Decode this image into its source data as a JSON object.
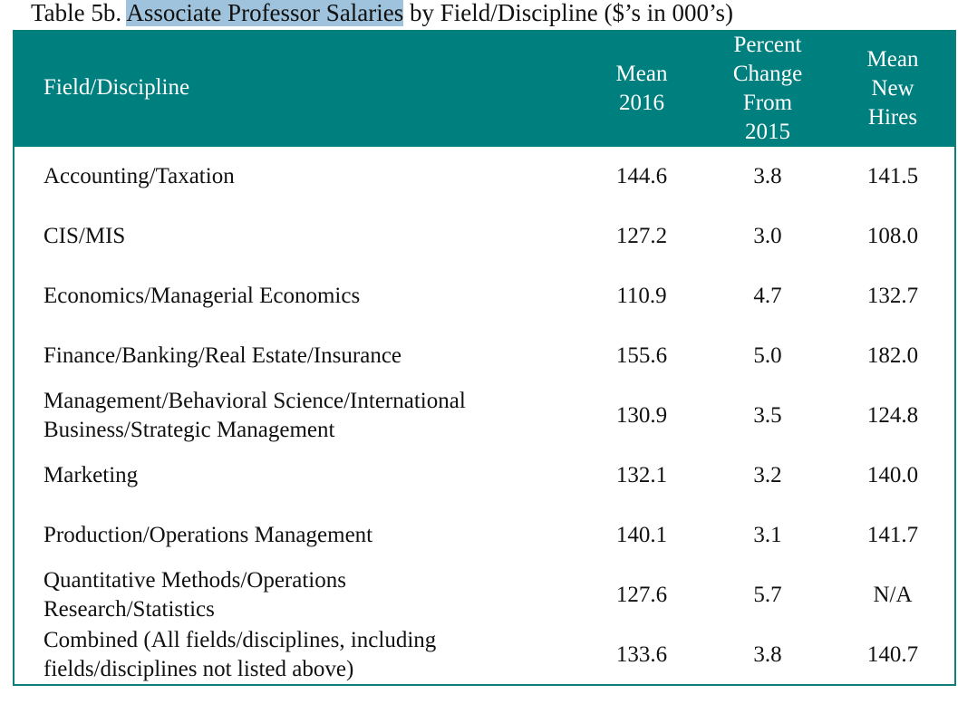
{
  "title": {
    "prefix": "Table 5b. ",
    "highlighted": "Associate Professor Salaries",
    "suffix": " by Field/Discipline ($’s in 000’s)"
  },
  "colors": {
    "header_bg": "#007f7f",
    "highlight": "#9fc3dc"
  },
  "columns": [
    "Field/Discipline",
    "Mean 2016",
    "Percent Change From 2015",
    "Mean New Hires"
  ],
  "column_lines": {
    "mean": [
      "Mean",
      "2016"
    ],
    "pct": [
      "Percent",
      "Change",
      "From",
      "2015"
    ],
    "hires": [
      "Mean",
      "New",
      "Hires"
    ]
  },
  "rows": [
    {
      "field": [
        "Accounting/Taxation"
      ],
      "mean": "144.6",
      "pct": "3.8",
      "hires": "141.5"
    },
    {
      "field": [
        "CIS/MIS"
      ],
      "mean": "127.2",
      "pct": "3.0",
      "hires": "108.0"
    },
    {
      "field": [
        "Economics/Managerial Economics"
      ],
      "mean": "110.9",
      "pct": "4.7",
      "hires": "132.7"
    },
    {
      "field": [
        "Finance/Banking/Real Estate/Insurance"
      ],
      "mean": "155.6",
      "pct": "5.0",
      "hires": "182.0"
    },
    {
      "field": [
        "Management/Behavioral Science/International",
        "Business/Strategic Management"
      ],
      "mean": "130.9",
      "pct": "3.5",
      "hires": "124.8"
    },
    {
      "field": [
        "Marketing"
      ],
      "mean": "132.1",
      "pct": "3.2",
      "hires": "140.0"
    },
    {
      "field": [
        "Production/Operations Management"
      ],
      "mean": "140.1",
      "pct": "3.1",
      "hires": "141.7"
    },
    {
      "field": [
        "Quantitative Methods/Operations",
        "Research/Statistics"
      ],
      "mean": "127.6",
      "pct": "5.7",
      "hires": "N/A"
    },
    {
      "field": [
        "Combined (All fields/disciplines, including",
        "fields/disciplines not listed above)"
      ],
      "mean": "133.6",
      "pct": "3.8",
      "hires": "140.7"
    }
  ]
}
